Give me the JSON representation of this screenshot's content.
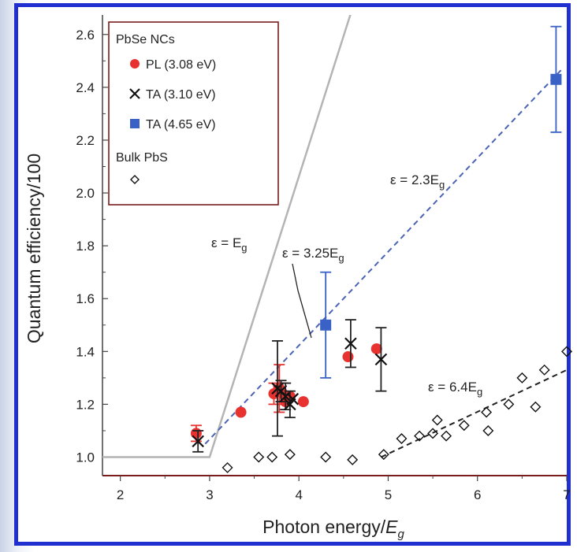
{
  "chart_data": {
    "type": "scatter",
    "title": "",
    "xlabel": "Photon energy/",
    "xlabel_italic": "E",
    "xlabel_sub": "g",
    "ylabel": "Quantum efficiency/100",
    "xlim": [
      1.8,
      7.0
    ],
    "ylim": [
      0.93,
      2.65
    ],
    "x_ticks": [
      "2",
      "3",
      "4",
      "5",
      "6",
      "7"
    ],
    "y_ticks": [
      "1.0",
      "1.2",
      "1.4",
      "1.6",
      "1.8",
      "2.0",
      "2.2",
      "2.4",
      "2.6"
    ],
    "grid": false,
    "legend_position": "top-left",
    "legend": {
      "group1_title": "PbSe NCs",
      "group2_title": "Bulk PbS",
      "entries": [
        "PL (3.08 eV)",
        "TA (3.10 eV)",
        "TA (4.65 eV)"
      ]
    },
    "series": [
      {
        "name": "PL (3.08 eV)",
        "marker": "circle",
        "color": "#e8322f",
        "points": [
          {
            "x": 2.85,
            "y": 1.09,
            "err": 0.03
          },
          {
            "x": 3.35,
            "y": 1.17
          },
          {
            "x": 3.72,
            "y": 1.24,
            "err": 0.04
          },
          {
            "x": 3.78,
            "y": 1.26,
            "err": 0.09
          },
          {
            "x": 3.82,
            "y": 1.24,
            "err": 0.04
          },
          {
            "x": 3.85,
            "y": 1.21
          },
          {
            "x": 3.9,
            "y": 1.23
          },
          {
            "x": 4.05,
            "y": 1.21
          },
          {
            "x": 4.55,
            "y": 1.38
          },
          {
            "x": 4.87,
            "y": 1.41
          }
        ]
      },
      {
        "name": "TA (3.10 eV)",
        "marker": "cross",
        "color": "#111111",
        "points": [
          {
            "x": 2.87,
            "y": 1.06,
            "err": 0.04
          },
          {
            "x": 3.76,
            "y": 1.26,
            "err": 0.18
          },
          {
            "x": 3.8,
            "y": 1.25,
            "err": 0.04
          },
          {
            "x": 3.85,
            "y": 1.23,
            "err": 0.05
          },
          {
            "x": 3.9,
            "y": 1.2,
            "err": 0.05
          },
          {
            "x": 3.93,
            "y": 1.22
          },
          {
            "x": 4.58,
            "y": 1.43,
            "err": 0.09
          },
          {
            "x": 4.92,
            "y": 1.37,
            "err": 0.12
          }
        ]
      },
      {
        "name": "TA (4.65 eV)",
        "marker": "square",
        "color": "#3a62c6",
        "points": [
          {
            "x": 4.3,
            "y": 1.5,
            "err": 0.2
          },
          {
            "x": 6.88,
            "y": 2.43,
            "err": 0.2
          }
        ]
      },
      {
        "name": "Bulk PbS",
        "marker": "diamond",
        "color": "#111111",
        "points": [
          {
            "x": 3.2,
            "y": 0.96
          },
          {
            "x": 3.55,
            "y": 1.0
          },
          {
            "x": 3.7,
            "y": 1.0
          },
          {
            "x": 3.9,
            "y": 1.01
          },
          {
            "x": 4.3,
            "y": 1.0
          },
          {
            "x": 4.6,
            "y": 0.99
          },
          {
            "x": 4.95,
            "y": 1.01
          },
          {
            "x": 5.15,
            "y": 1.07
          },
          {
            "x": 5.35,
            "y": 1.08
          },
          {
            "x": 5.5,
            "y": 1.09
          },
          {
            "x": 5.55,
            "y": 1.14
          },
          {
            "x": 5.65,
            "y": 1.08
          },
          {
            "x": 5.85,
            "y": 1.12
          },
          {
            "x": 6.1,
            "y": 1.17
          },
          {
            "x": 6.12,
            "y": 1.1
          },
          {
            "x": 6.35,
            "y": 1.2
          },
          {
            "x": 6.5,
            "y": 1.3
          },
          {
            "x": 6.65,
            "y": 1.19
          },
          {
            "x": 6.75,
            "y": 1.33
          },
          {
            "x": 7.0,
            "y": 1.4
          }
        ]
      }
    ],
    "model_lines": [
      {
        "label": "ε = E",
        "label_sub": "g",
        "style": "solid",
        "color": "#b4b4b4",
        "points": [
          [
            1.8,
            1.0
          ],
          [
            3.0,
            1.0
          ],
          [
            4.6,
            2.7
          ]
        ]
      },
      {
        "label": "ε = 2.3E",
        "label_sub": "g",
        "style": "dashed",
        "color": "#4b63b5",
        "points": [
          [
            2.95,
            1.05
          ],
          [
            6.95,
            2.47
          ]
        ]
      },
      {
        "label": "ε = 3.25E",
        "label_sub": "g",
        "style": "dashed",
        "color": "#4b63b5",
        "points": []
      },
      {
        "label": "ε = 6.4E",
        "label_sub": "g",
        "style": "dashed",
        "color": "#222222",
        "points": [
          [
            4.92,
            1.0
          ],
          [
            7.0,
            1.33
          ]
        ]
      }
    ]
  }
}
